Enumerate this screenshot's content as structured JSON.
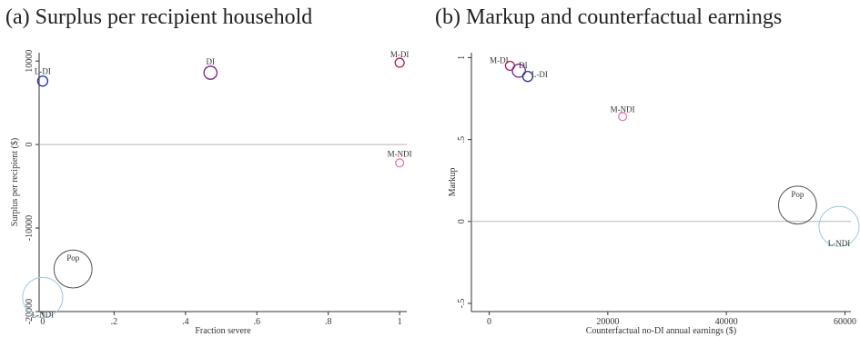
{
  "chart_data": [
    {
      "type": "scatter",
      "title": "(a) Surplus per recipient household",
      "xlabel": "Fraction severe",
      "ylabel": "Surplus per recipient ($)",
      "xlim": [
        -0.01,
        1.02
      ],
      "ylim": [
        -20000,
        11000
      ],
      "xticks": [
        0,
        0.2,
        0.4,
        0.6,
        0.8,
        1
      ],
      "xtick_labels": [
        "0",
        ".2",
        ".4",
        ".6",
        ".8",
        "1"
      ],
      "yticks": [
        10000,
        0,
        -10000,
        -20000
      ],
      "ytick_labels": [
        "10000",
        "0",
        "-10000",
        "-20000"
      ],
      "reference_line": 0,
      "grid": false,
      "points": [
        {
          "label": "L-DI",
          "x": 0.0,
          "y": 7600,
          "size": 1.0,
          "color": "#1f2fa8"
        },
        {
          "label": "DI",
          "x": 0.47,
          "y": 8600,
          "size": 1.3,
          "color": "#7a1f8a"
        },
        {
          "label": "M-DI",
          "x": 1.0,
          "y": 9800,
          "size": 0.9,
          "color": "#b0185a"
        },
        {
          "label": "M-NDI",
          "x": 1.0,
          "y": -2200,
          "size": 0.8,
          "color": "#e777b5"
        },
        {
          "label": "Pop",
          "x": 0.085,
          "y": -14900,
          "size": 3.8,
          "color": "#555555"
        },
        {
          "label": "L-NDI",
          "x": 0.0,
          "y": -18300,
          "size": 4.0,
          "color": "#9ecae1"
        }
      ]
    },
    {
      "type": "scatter",
      "title": "(b) Markup and counterfactual earnings",
      "xlabel": "Counterfactual no-DI annual earnings ($)",
      "ylabel": "Markup",
      "xlim": [
        -3000,
        61000
      ],
      "ylim": [
        -0.55,
        1.03
      ],
      "xticks": [
        0,
        20000,
        40000,
        60000
      ],
      "xtick_labels": [
        "0",
        "20000",
        "40000",
        "60000"
      ],
      "yticks": [
        1,
        0.5,
        0,
        -0.5
      ],
      "ytick_labels": [
        "1",
        ".5",
        "0",
        "-.5"
      ],
      "reference_line": 0,
      "grid": false,
      "points": [
        {
          "label": "M-DI",
          "x": 3500,
          "y": 0.95,
          "size": 0.9,
          "color": "#b0185a"
        },
        {
          "label": "DI",
          "x": 5000,
          "y": 0.92,
          "size": 1.3,
          "color": "#7a1f8a"
        },
        {
          "label": "L-DI",
          "x": 6500,
          "y": 0.885,
          "size": 1.0,
          "color": "#1f2fa8"
        },
        {
          "label": "M-NDI",
          "x": 22500,
          "y": 0.64,
          "size": 0.8,
          "color": "#e777b5"
        },
        {
          "label": "Pop",
          "x": 52000,
          "y": 0.1,
          "size": 3.8,
          "color": "#555555"
        },
        {
          "label": "L-NDI",
          "x": 59000,
          "y": -0.03,
          "size": 4.0,
          "color": "#9ecae1"
        }
      ]
    }
  ]
}
